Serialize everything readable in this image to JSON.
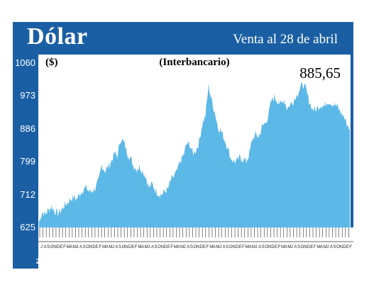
{
  "header": {
    "title": "Dólar",
    "subtitle": "Venta al 28 de abril"
  },
  "chart_data": {
    "type": "area",
    "unit_label": "($)",
    "series_label": "(Interbancario)",
    "last_value_label": "885,65",
    "ylim": [
      625,
      1060
    ],
    "yticks": [
      "1060",
      "973",
      "886",
      "799",
      "712",
      "625"
    ],
    "year_labels": [
      "2018",
      "2019",
      "2020",
      "2021",
      "2022",
      "2023",
      "2024",
      "2025",
      "'26"
    ],
    "color": "#5cb8e6",
    "x": [
      "2018-01",
      "2018-02",
      "2018-03",
      "2018-04",
      "2018-05",
      "2018-06",
      "2018-07",
      "2018-08",
      "2018-09",
      "2018-10",
      "2018-11",
      "2018-12",
      "2019-01",
      "2019-02",
      "2019-03",
      "2019-04",
      "2019-05",
      "2019-06",
      "2019-07",
      "2019-08",
      "2019-09",
      "2019-10",
      "2019-11",
      "2019-12",
      "2020-01",
      "2020-02",
      "2020-03",
      "2020-04",
      "2020-05",
      "2020-06",
      "2020-07",
      "2020-08",
      "2020-09",
      "2020-10",
      "2020-11",
      "2020-12",
      "2021-01",
      "2021-02",
      "2021-03",
      "2021-04",
      "2021-05",
      "2021-06",
      "2021-07",
      "2021-08",
      "2021-09",
      "2021-10",
      "2021-11",
      "2021-12",
      "2022-01",
      "2022-02",
      "2022-03",
      "2022-04",
      "2022-05",
      "2022-06",
      "2022-07",
      "2022-08",
      "2022-09",
      "2022-10",
      "2022-11",
      "2022-12",
      "2023-01",
      "2023-02",
      "2023-03",
      "2023-04",
      "2023-05",
      "2023-06",
      "2023-07",
      "2023-08",
      "2023-09",
      "2023-10",
      "2023-11",
      "2023-12",
      "2024-01",
      "2024-02",
      "2024-03",
      "2024-04",
      "2024-05",
      "2024-06",
      "2024-07",
      "2024-08",
      "2024-09",
      "2024-10",
      "2024-11",
      "2024-12",
      "2025-01",
      "2025-02",
      "2025-03",
      "2025-04",
      "2025-05",
      "2025-06",
      "2025-07",
      "2025-08",
      "2025-09",
      "2025-10",
      "2025-11",
      "2025-12",
      "2026-01",
      "2026-02",
      "2026-03",
      "2026-04"
    ],
    "values": [
      640,
      665,
      660,
      672,
      680,
      668,
      662,
      670,
      682,
      690,
      700,
      705,
      700,
      715,
      725,
      730,
      720,
      722,
      730,
      748,
      790,
      775,
      785,
      800,
      820,
      815,
      860,
      850,
      825,
      810,
      790,
      780,
      785,
      775,
      760,
      730,
      740,
      725,
      715,
      712,
      720,
      725,
      750,
      760,
      775,
      800,
      815,
      845,
      845,
      820,
      830,
      850,
      900,
      920,
      1000,
      960,
      930,
      890,
      880,
      860,
      840,
      810,
      800,
      800,
      810,
      805,
      800,
      820,
      860,
      870,
      865,
      890,
      900,
      920,
      960,
      970,
      960,
      950,
      965,
      940,
      950,
      960,
      975,
      990,
      1005,
      990,
      960,
      940,
      935,
      945,
      950,
      945,
      960,
      955,
      950,
      945,
      930,
      920,
      900,
      885.65
    ]
  },
  "month_axis": {
    "month_letters": [
      "J",
      "A",
      "S",
      "O",
      "N",
      "D",
      "E",
      "F",
      "M",
      "A",
      "M"
    ]
  }
}
